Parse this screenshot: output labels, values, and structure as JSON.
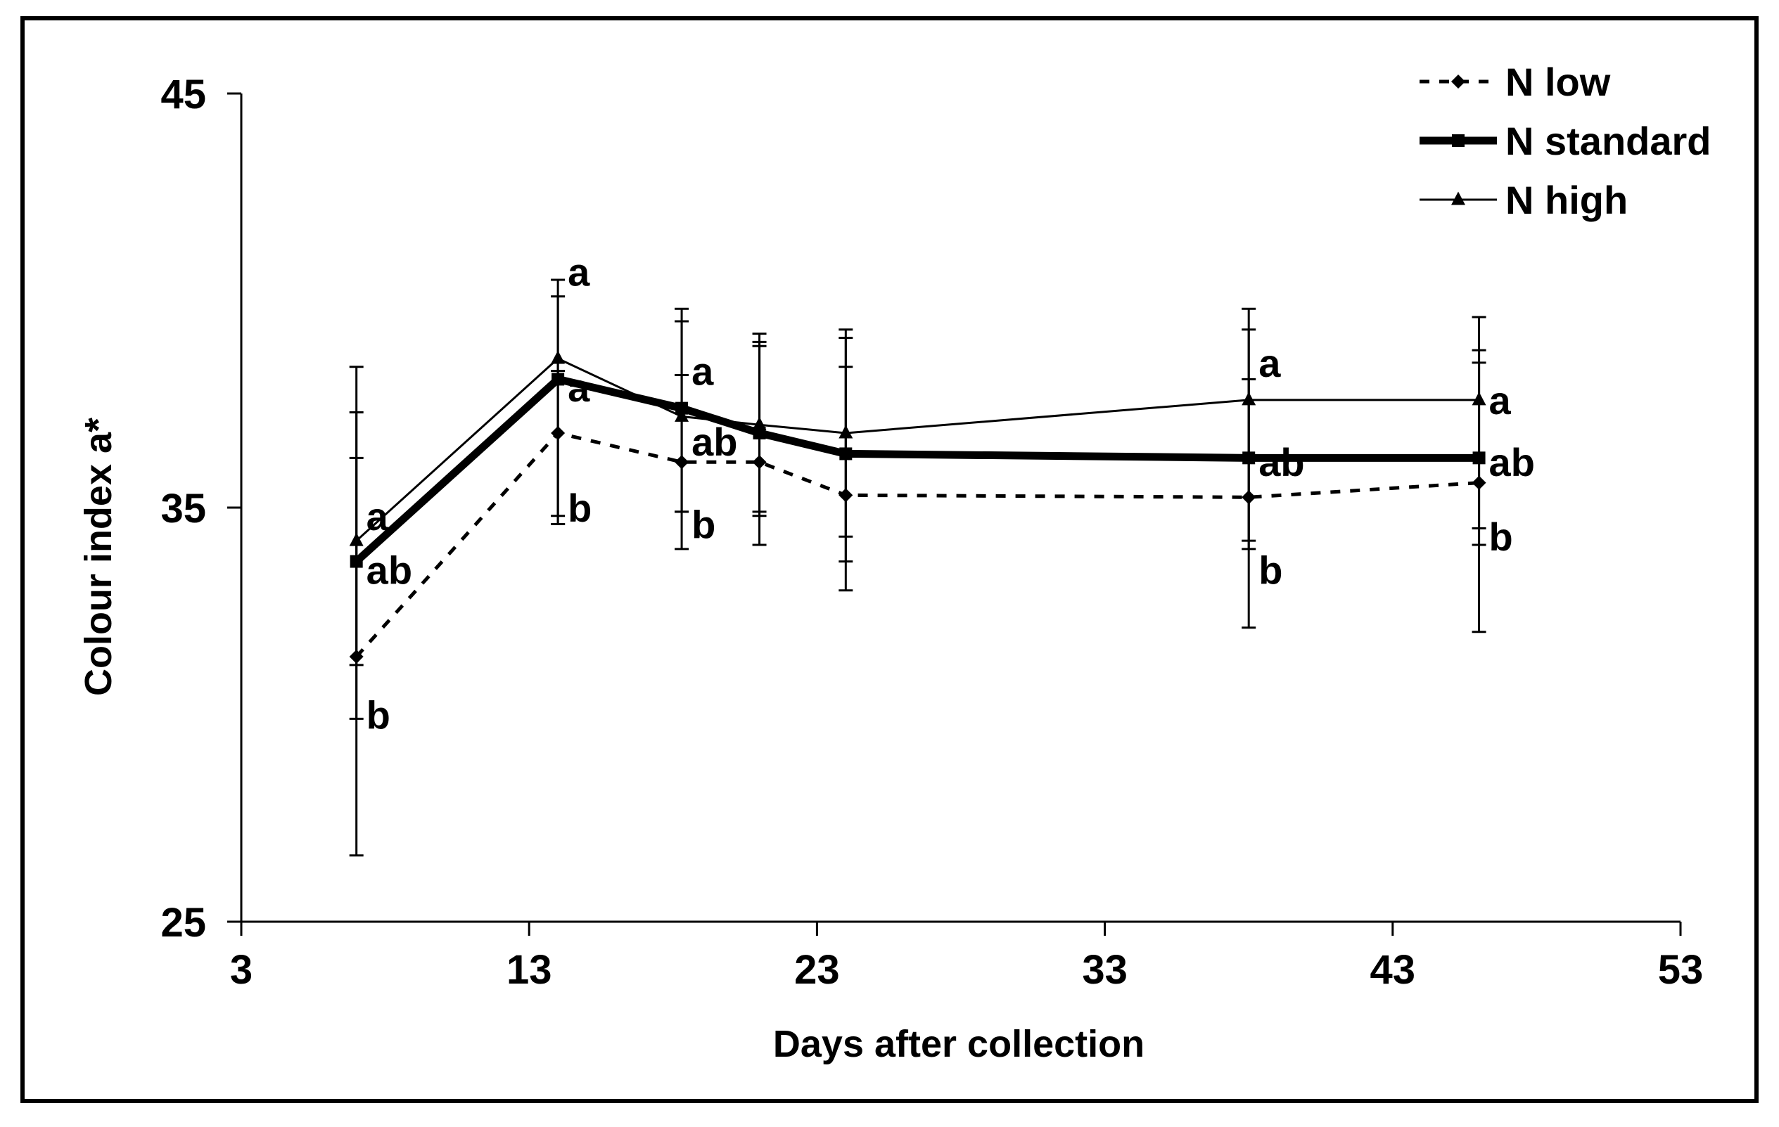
{
  "chart_data": {
    "type": "line",
    "title": "",
    "xlabel": "Days after collection",
    "ylabel": "Colour index a*",
    "xlim": [
      3,
      53
    ],
    "ylim": [
      25,
      45
    ],
    "xticks": [
      3,
      13,
      23,
      33,
      43,
      53
    ],
    "yticks": [
      25,
      35,
      45
    ],
    "xtick_labels": [
      "3",
      "13",
      "23",
      "33",
      "43",
      "53"
    ],
    "ytick_labels": [
      "25",
      "35",
      "45"
    ],
    "grid": false,
    "legend_position": "top-right",
    "series": [
      {
        "name": "N low",
        "style": "dotted",
        "marker": "diamond",
        "x": [
          7,
          14,
          18.3,
          21,
          24,
          38,
          46
        ],
        "y": [
          31.4,
          36.8,
          36.1,
          36.1,
          35.3,
          35.25,
          35.6
        ],
        "err_low": [
          29.9,
          34.6,
          34.0,
          34.1,
          33.0,
          32.1,
          32.0
        ],
        "err_high": [
          38.4,
          38.3,
          38.2,
          39.2,
          38.4,
          38.1,
          38.8
        ]
      },
      {
        "name": "N standard",
        "style": "thick",
        "marker": "square",
        "x": [
          7,
          14,
          18.3,
          21,
          24,
          38,
          46
        ],
        "y": [
          33.7,
          38.1,
          37.4,
          36.8,
          36.3,
          36.2,
          36.2
        ],
        "err_low": [
          31.2,
          34.6,
          34.9,
          34.8,
          33.7,
          34.0,
          34.1
        ],
        "err_high": [
          36.2,
          40.1,
          39.8,
          39.0,
          39.1,
          39.3,
          38.5
        ]
      },
      {
        "name": "N high",
        "style": "thin",
        "marker": "triangle",
        "x": [
          7,
          14,
          18.3,
          21,
          24,
          38,
          46
        ],
        "y": [
          34.2,
          38.6,
          37.2,
          37.0,
          36.8,
          37.6,
          37.6
        ],
        "err_low": [
          26.6,
          34.8,
          34.9,
          34.9,
          34.3,
          34.2,
          34.5
        ],
        "err_high": [
          37.3,
          40.5,
          39.5,
          38.9,
          39.3,
          39.8,
          39.6
        ]
      }
    ],
    "annotations": [
      {
        "text": "a",
        "x": 7,
        "y": 34.8
      },
      {
        "text": "ab",
        "x": 7,
        "y": 33.5
      },
      {
        "text": "b",
        "x": 7,
        "y": 30.0
      },
      {
        "text": "a",
        "x": 14,
        "y": 40.7
      },
      {
        "text": "a",
        "x": 14,
        "y": 37.9
      },
      {
        "text": "b",
        "x": 14,
        "y": 35.0
      },
      {
        "text": "a",
        "x": 18.3,
        "y": 38.3
      },
      {
        "text": "ab",
        "x": 18.3,
        "y": 36.6
      },
      {
        "text": "b",
        "x": 18.3,
        "y": 34.6
      },
      {
        "text": "a",
        "x": 38,
        "y": 38.5
      },
      {
        "text": "ab",
        "x": 38,
        "y": 36.1
      },
      {
        "text": "b",
        "x": 38,
        "y": 33.5
      },
      {
        "text": "a",
        "x": 46,
        "y": 37.6
      },
      {
        "text": "ab",
        "x": 46,
        "y": 36.1
      },
      {
        "text": "b",
        "x": 46,
        "y": 34.3
      }
    ]
  }
}
